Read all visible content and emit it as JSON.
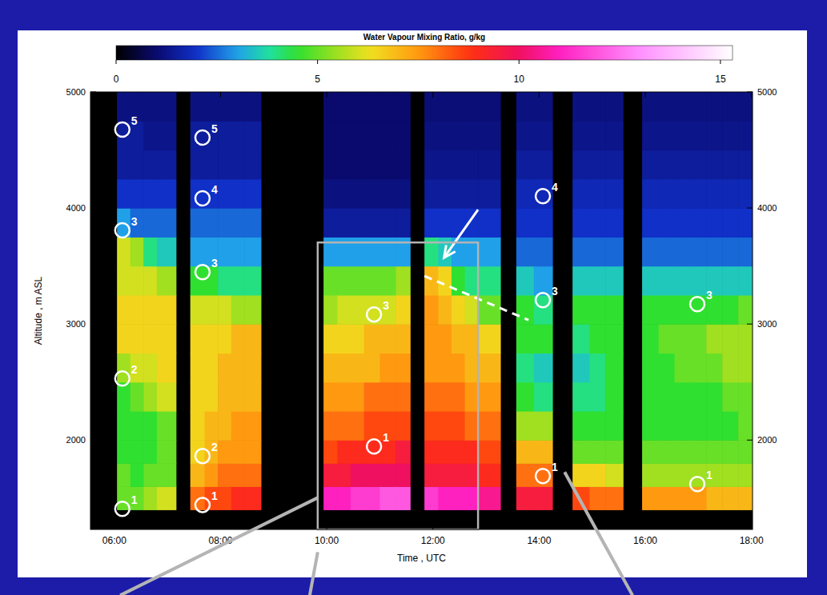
{
  "chart_data": {
    "type": "heatmap",
    "colorbar_title": "Water Vapour Mixing Ratio, g/kg",
    "x_label": "Time , UTC",
    "y_label": "Altitude , m ASL",
    "xlim": [
      5.55,
      18.02
    ],
    "xticks": [
      {
        "value": 6,
        "label": "06:00"
      },
      {
        "value": 8,
        "label": "08:00"
      },
      {
        "value": 10,
        "label": "10:00"
      },
      {
        "value": 12,
        "label": "12:00"
      },
      {
        "value": 14,
        "label": "14:00"
      },
      {
        "value": 16,
        "label": "16:00"
      },
      {
        "value": 18,
        "label": "18:00"
      }
    ],
    "ylim": [
      1230,
      5000
    ],
    "yticks": [
      2000,
      3000,
      4000,
      5000
    ],
    "color_range": [
      0,
      15.3
    ],
    "color_ticks": [
      0,
      5,
      10,
      15
    ],
    "y_edges": [
      1400,
      1600,
      1800,
      2000,
      2250,
      2500,
      2750,
      3000,
      3250,
      3500,
      3750,
      4000,
      4250,
      4500,
      4750,
      5000
    ],
    "columns": [
      {
        "x": [
          6.05,
          6.3
        ],
        "values": [
          5,
          5,
          4.5,
          4.5,
          4.5,
          5.5,
          6.5,
          6.5,
          6,
          6,
          3,
          2,
          1.5,
          1.5,
          1.2
        ]
      },
      {
        "x": [
          6.3,
          6.55
        ],
        "values": [
          5,
          4.5,
          4.5,
          4.5,
          5,
          6,
          6.5,
          6.5,
          6,
          5.5,
          2.5,
          2,
          1.5,
          1.5,
          1.2
        ]
      },
      {
        "x": [
          6.55,
          6.8
        ],
        "values": [
          5.5,
          5,
          4.5,
          4.5,
          5.5,
          6,
          6.5,
          6.5,
          6,
          4,
          2.5,
          2,
          1.5,
          1.3,
          1.2
        ]
      },
      {
        "x": [
          6.8,
          7.16
        ],
        "values": [
          6,
          5,
          5,
          5,
          6,
          6.5,
          6.5,
          6.5,
          5.5,
          3.5,
          2.5,
          2,
          1.5,
          1.3,
          1.2
        ]
      },
      {
        "x": [
          7.43,
          7.7
        ],
        "values": [
          8,
          7,
          6.5,
          6.5,
          6.5,
          6.5,
          6.5,
          6,
          4.5,
          3,
          2.5,
          2,
          1.5,
          1.5,
          1.2
        ]
      },
      {
        "x": [
          7.7,
          7.95
        ],
        "values": [
          8.5,
          7.5,
          7,
          7,
          6.5,
          6.5,
          6.5,
          6,
          4.5,
          3,
          2.5,
          2,
          1.5,
          1.5,
          1.2
        ]
      },
      {
        "x": [
          7.95,
          8.2
        ],
        "values": [
          8.5,
          8,
          7.5,
          7,
          7,
          7,
          6.5,
          6,
          4,
          3,
          2.5,
          2,
          1.5,
          1.5,
          1.2
        ]
      },
      {
        "x": [
          8.2,
          8.45
        ],
        "values": [
          9,
          8,
          7.5,
          7.5,
          7,
          7,
          7,
          5.5,
          4,
          3,
          2.5,
          2,
          1.5,
          1.5,
          1.2
        ]
      },
      {
        "x": [
          8.45,
          8.76
        ],
        "values": [
          9,
          8,
          7.5,
          7.5,
          7,
          7,
          7,
          5.5,
          4,
          3,
          2.5,
          2,
          1.5,
          1.5,
          1.2
        ]
      },
      {
        "x": [
          9.94,
          10.2
        ],
        "values": [
          11,
          9.5,
          8.5,
          8,
          7.5,
          7,
          6.5,
          5.5,
          5,
          3,
          1.5,
          1.2,
          1,
          1,
          1
        ]
      },
      {
        "x": [
          10.2,
          10.45
        ],
        "values": [
          11,
          9.5,
          9,
          8,
          7.5,
          7,
          6.5,
          6,
          5,
          3,
          1.5,
          1.2,
          1,
          1,
          1
        ]
      },
      {
        "x": [
          10.45,
          10.7
        ],
        "values": [
          11.5,
          10,
          9,
          8,
          7.5,
          7,
          6.5,
          6,
          5,
          3,
          1.5,
          1.2,
          1,
          1,
          1
        ]
      },
      {
        "x": [
          10.7,
          11
        ],
        "values": [
          11.5,
          10,
          9,
          8.5,
          8,
          7,
          7,
          6,
          5,
          3,
          1.5,
          1.2,
          1,
          1,
          1
        ]
      },
      {
        "x": [
          11,
          11.3
        ],
        "values": [
          12,
          10,
          9,
          8.5,
          8,
          7.5,
          7,
          6,
          5,
          3,
          1.5,
          1.2,
          1,
          1,
          1
        ]
      },
      {
        "x": [
          11.3,
          11.57
        ],
        "values": [
          12,
          10,
          9.5,
          8.5,
          8,
          7.5,
          7,
          6.5,
          5.5,
          3,
          1.5,
          1.2,
          1,
          1,
          1
        ]
      },
      {
        "x": [
          11.84,
          12.1
        ],
        "values": [
          11.5,
          9.5,
          9,
          8.5,
          8,
          7.5,
          7.5,
          7.5,
          7,
          4,
          2,
          1.5,
          1.3,
          1.2,
          1.1
        ]
      },
      {
        "x": [
          12.1,
          12.35
        ],
        "values": [
          11,
          9.5,
          9,
          8.5,
          8,
          7.5,
          7.5,
          7,
          6.5,
          3.5,
          2,
          1.5,
          1.3,
          1.2,
          1.1
        ]
      },
      {
        "x": [
          12.35,
          12.6
        ],
        "values": [
          11,
          9.5,
          9,
          8.5,
          8,
          7.5,
          7,
          6.5,
          4.5,
          3,
          2,
          1.5,
          1.3,
          1.2,
          1.1
        ]
      },
      {
        "x": [
          12.6,
          12.85
        ],
        "values": [
          11,
          9.5,
          9,
          8,
          7.5,
          7,
          7,
          6,
          4,
          3,
          2,
          1.5,
          1.3,
          1.2,
          1.1
        ]
      },
      {
        "x": [
          12.85,
          13.27
        ],
        "values": [
          10.5,
          9,
          8.5,
          8,
          7.5,
          7,
          6.5,
          5,
          4,
          3,
          2,
          1.5,
          1.3,
          1.2,
          1.1
        ]
      },
      {
        "x": [
          13.57,
          13.9
        ],
        "values": [
          9.5,
          8,
          7,
          5.5,
          4.5,
          4,
          4.5,
          4.5,
          3.5,
          2.5,
          2,
          1.8,
          1.5,
          1.3,
          1.2
        ]
      },
      {
        "x": [
          13.9,
          14.25
        ],
        "values": [
          9.5,
          8,
          7,
          5.5,
          4,
          3.5,
          4.5,
          4,
          3,
          2.5,
          2,
          1.8,
          1.5,
          1.3,
          1.2
        ]
      },
      {
        "x": [
          14.63,
          14.95
        ],
        "values": [
          8.5,
          6.5,
          5,
          4.5,
          4,
          3.5,
          4,
          4.5,
          3.5,
          2.5,
          2,
          1.8,
          1.5,
          1.3,
          1.2
        ]
      },
      {
        "x": [
          14.95,
          15.25
        ],
        "values": [
          8,
          6.5,
          5,
          4.5,
          4,
          4,
          4.5,
          4.5,
          3.5,
          2.5,
          2,
          1.8,
          1.5,
          1.3,
          1.2
        ]
      },
      {
        "x": [
          15.25,
          15.58
        ],
        "values": [
          8,
          6,
          5,
          4.5,
          4.5,
          4.5,
          4.5,
          4.5,
          3.5,
          2.5,
          2,
          1.8,
          1.5,
          1.3,
          1.2
        ]
      },
      {
        "x": [
          15.94,
          16.25
        ],
        "values": [
          7.5,
          5.5,
          5,
          4.5,
          4.5,
          4.5,
          4.5,
          4.5,
          3.5,
          2.5,
          2,
          1.8,
          1.5,
          1.3,
          1.2
        ]
      },
      {
        "x": [
          16.25,
          16.55
        ],
        "values": [
          7.5,
          5.5,
          5,
          4.5,
          4.5,
          4.5,
          5,
          4.5,
          3.5,
          2.5,
          2,
          1.8,
          1.5,
          1.3,
          1.2
        ]
      },
      {
        "x": [
          16.55,
          16.85
        ],
        "values": [
          7.5,
          5.5,
          5,
          4.5,
          4.5,
          5,
          5,
          4.5,
          3.5,
          2.5,
          2,
          1.8,
          1.5,
          1.3,
          1.2
        ]
      },
      {
        "x": [
          16.85,
          17.15
        ],
        "values": [
          7.5,
          5.5,
          5,
          4.5,
          4.5,
          5,
          5,
          4.5,
          3.5,
          2.5,
          2,
          1.8,
          1.5,
          1.3,
          1.2
        ]
      },
      {
        "x": [
          17.15,
          17.45
        ],
        "values": [
          7,
          5.5,
          5,
          4.5,
          4.5,
          5,
          5.5,
          4.5,
          3.5,
          2.5,
          2,
          1.8,
          1.5,
          1.3,
          1.2
        ]
      },
      {
        "x": [
          17.45,
          17.75
        ],
        "values": [
          7,
          5.5,
          5,
          4.5,
          5,
          5.5,
          5.5,
          4.5,
          3.5,
          2.5,
          2,
          1.8,
          1.5,
          1.3,
          1.2
        ]
      },
      {
        "x": [
          17.75,
          18.02
        ],
        "values": [
          7,
          5.5,
          5,
          5,
          5,
          5.5,
          5.5,
          5,
          3.5,
          2.5,
          2,
          1.8,
          1.5,
          1.3,
          1.2
        ]
      }
    ],
    "markers": [
      {
        "label": "5",
        "x": 6.15,
        "y": 4676
      },
      {
        "label": "3",
        "x": 6.15,
        "y": 3807
      },
      {
        "label": "2",
        "x": 6.15,
        "y": 2531
      },
      {
        "label": "1",
        "x": 6.15,
        "y": 1407
      },
      {
        "label": "5",
        "x": 7.66,
        "y": 4607
      },
      {
        "label": "4",
        "x": 7.66,
        "y": 4083
      },
      {
        "label": "3",
        "x": 7.66,
        "y": 3448
      },
      {
        "label": "2",
        "x": 7.66,
        "y": 1862
      },
      {
        "label": "1",
        "x": 7.66,
        "y": 1441
      },
      {
        "label": "3",
        "x": 10.89,
        "y": 3083
      },
      {
        "label": "1",
        "x": 10.89,
        "y": 1945
      },
      {
        "label": "4",
        "x": 14.07,
        "y": 4103
      },
      {
        "label": "3",
        "x": 14.07,
        "y": 3207
      },
      {
        "label": "1",
        "x": 14.07,
        "y": 1690
      },
      {
        "label": "3",
        "x": 16.98,
        "y": 3172
      },
      {
        "label": "1",
        "x": 16.98,
        "y": 1621
      }
    ],
    "arrow": {
      "x": [
        12.85,
        12.21
      ],
      "y": [
        3986,
        3572
      ]
    },
    "dashed_line": {
      "x": [
        11.84,
        13.8
      ],
      "y": [
        3414,
        3034
      ]
    },
    "zoom_box": {
      "x": [
        9.83,
        12.85
      ],
      "y": [
        1230,
        3703
      ]
    },
    "callouts": [
      {
        "x": [
          9.83,
          6.11
        ],
        "y": [
          1503,
          662
        ]
      },
      {
        "x": [
          9.83,
          9.68
        ],
        "y": [
          1034,
          662
        ]
      },
      {
        "x": [
          14.48,
          15.76
        ],
        "y": [
          1724,
          662
        ]
      }
    ]
  }
}
